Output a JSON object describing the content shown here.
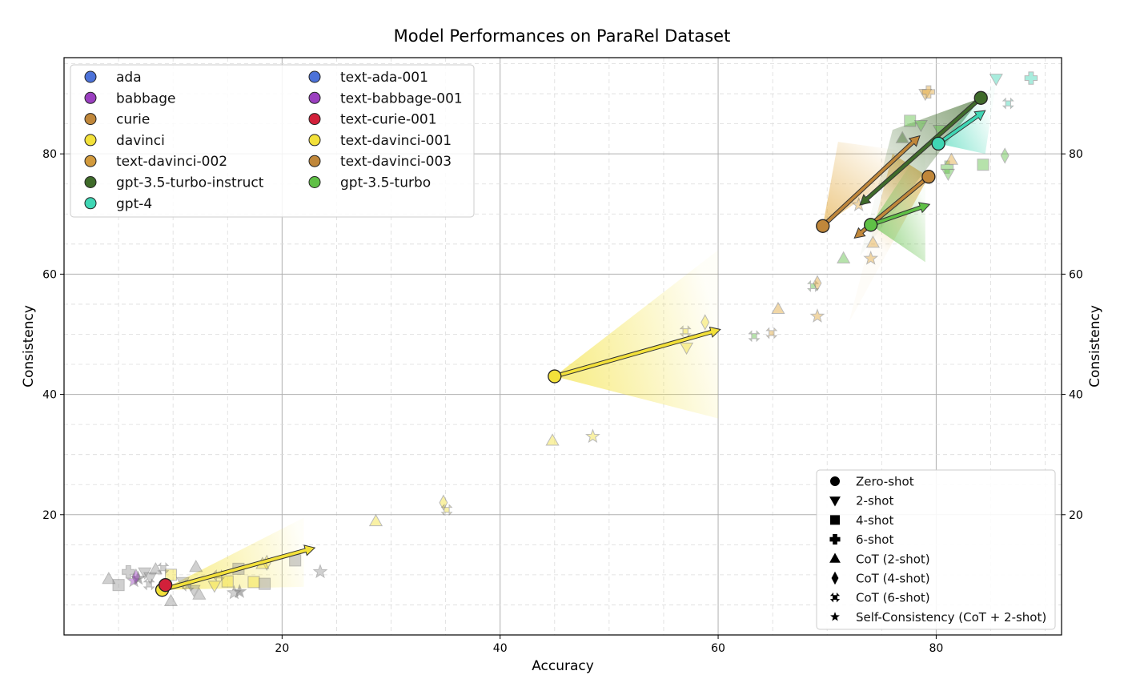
{
  "chart_data": {
    "type": "scatter",
    "title": "Model Performances on ParaRel Dataset",
    "xlabel": "Accuracy",
    "ylabel": "Consistency",
    "ylabel_right": "Consistency",
    "xlim": [
      0,
      91.5
    ],
    "ylim": [
      0,
      96
    ],
    "xticks": [
      20,
      40,
      60,
      80
    ],
    "yticks": [
      20,
      40,
      60,
      80
    ],
    "grid": true,
    "legend_models_position": "upper-left",
    "legend_methods_position": "lower-right",
    "models": [
      {
        "name": "ada",
        "color": "#4c72d9"
      },
      {
        "name": "babbage",
        "color": "#9b3fc0"
      },
      {
        "name": "curie",
        "color": "#c0873a"
      },
      {
        "name": "davinci",
        "color": "#f3e13a"
      },
      {
        "name": "text-davinci-002",
        "color": "#d29a3c"
      },
      {
        "name": "gpt-3.5-turbo-instruct",
        "color": "#3f6b2a"
      },
      {
        "name": "gpt-4",
        "color": "#3fd6b4"
      },
      {
        "name": "text-ada-001",
        "color": "#4c72d9"
      },
      {
        "name": "text-babbage-001",
        "color": "#9b3fc0"
      },
      {
        "name": "text-curie-001",
        "color": "#d2203a"
      },
      {
        "name": "text-davinci-001",
        "color": "#f3e13a"
      },
      {
        "name": "text-davinci-003",
        "color": "#c0873a"
      },
      {
        "name": "gpt-3.5-turbo",
        "color": "#5fc046"
      }
    ],
    "methods": [
      {
        "name": "Zero-shot",
        "marker": "circle"
      },
      {
        "name": "2-shot",
        "marker": "triangle-down"
      },
      {
        "name": "4-shot",
        "marker": "square"
      },
      {
        "name": "6-shot",
        "marker": "plus"
      },
      {
        "name": "CoT (2-shot)",
        "marker": "triangle-up"
      },
      {
        "name": "CoT (4-shot)",
        "marker": "diamond"
      },
      {
        "name": "CoT (6-shot)",
        "marker": "x"
      },
      {
        "name": "Self-Consistency (CoT + 2-shot)",
        "marker": "star"
      }
    ],
    "zero_shot_points": [
      {
        "model": "text-davinci-001",
        "x": 45.0,
        "y": 43.0,
        "color": "#f3e13a"
      },
      {
        "model": "davinci",
        "x": 9.0,
        "y": 7.5,
        "color": "#f3e13a"
      },
      {
        "model": "text-curie-001",
        "x": 9.3,
        "y": 8.3,
        "color": "#d2203a"
      },
      {
        "model": "text-davinci-002",
        "x": 69.6,
        "y": 68.0,
        "color": "#c0873a"
      },
      {
        "model": "text-davinci-003",
        "x": 79.3,
        "y": 76.2,
        "color": "#c0873a"
      },
      {
        "model": "gpt-3.5-turbo",
        "x": 74.0,
        "y": 68.2,
        "color": "#5fc046"
      },
      {
        "model": "gpt-4",
        "x": 80.2,
        "y": 81.7,
        "color": "#3fd6b4"
      },
      {
        "model": "gpt-3.5-turbo-instruct",
        "x": 84.1,
        "y": 89.3,
        "color": "#3f6b2a"
      }
    ],
    "arrows": [
      {
        "x0": 45.0,
        "y0": 43.0,
        "x1": 60.2,
        "y1": 50.8,
        "color": "#f3e13a"
      },
      {
        "x0": 9.0,
        "y0": 7.5,
        "x1": 23.0,
        "y1": 14.5,
        "color": "#f3e13a"
      },
      {
        "x0": 69.6,
        "y0": 68.0,
        "x1": 78.5,
        "y1": 83.0,
        "color": "#c0873a"
      },
      {
        "x0": 79.3,
        "y0": 76.2,
        "x1": 72.5,
        "y1": 66.0,
        "color": "#c0873a"
      },
      {
        "x0": 74.0,
        "y0": 68.2,
        "x1": 79.4,
        "y1": 71.6,
        "color": "#5fc046"
      },
      {
        "x0": 84.1,
        "y0": 89.3,
        "x1": 73.0,
        "y1": 71.5,
        "color": "#3f6b2a"
      },
      {
        "x0": 80.2,
        "y0": 81.7,
        "x1": 84.5,
        "y1": 87.2,
        "color": "#3fd6b4"
      }
    ],
    "fans": [
      {
        "x0": 45.0,
        "y0": 43.0,
        "x1": 60.0,
        "y1": 64.0,
        "x2": 60.0,
        "y2": 36.0,
        "color": "#f3e13a"
      },
      {
        "x0": 9.0,
        "y0": 7.5,
        "x1": 22.0,
        "y1": 19.5,
        "x2": 22.0,
        "y2": 8.0,
        "color": "#f3e13a"
      },
      {
        "x0": 69.6,
        "y0": 68.0,
        "x1": 71.0,
        "y1": 82.0,
        "x2": 79.0,
        "y2": 80.0,
        "color": "#e2a83c"
      },
      {
        "x0": 79.3,
        "y0": 76.2,
        "x1": 72.0,
        "y1": 52.0,
        "x2": 76.0,
        "y2": 80.0,
        "color": "#e2a83c"
      },
      {
        "x0": 74.0,
        "y0": 68.2,
        "x1": 79.0,
        "y1": 82.0,
        "x2": 79.0,
        "y2": 62.0,
        "color": "#5fc046"
      },
      {
        "x0": 84.1,
        "y0": 89.3,
        "x1": 73.0,
        "y1": 63.0,
        "x2": 76.0,
        "y2": 84.0,
        "color": "#3f6b2a"
      },
      {
        "x0": 80.2,
        "y0": 81.7,
        "x1": 85.5,
        "y1": 92.0,
        "x2": 84.5,
        "y2": 80.0,
        "color": "#3fd6b4"
      }
    ],
    "other_points": [
      {
        "m": "triangle-up",
        "x": 44.8,
        "y": 32.3,
        "c": "#f3e13a"
      },
      {
        "m": "star",
        "x": 48.5,
        "y": 33.0,
        "c": "#f3e13a"
      },
      {
        "m": "triangle-up",
        "x": 28.6,
        "y": 18.9,
        "c": "#f3e13a"
      },
      {
        "m": "diamond",
        "x": 34.8,
        "y": 22.0,
        "c": "#f3e13a"
      },
      {
        "m": "x",
        "x": 35.1,
        "y": 20.8,
        "c": "#f3e13a"
      },
      {
        "m": "x",
        "x": 57.0,
        "y": 50.5,
        "c": "#f3e13a"
      },
      {
        "m": "triangle-down",
        "x": 57.1,
        "y": 47.8,
        "c": "#f3e13a"
      },
      {
        "m": "diamond",
        "x": 58.8,
        "y": 52.0,
        "c": "#f3e13a"
      },
      {
        "m": "x",
        "x": 63.3,
        "y": 49.7,
        "c": "#5fc046"
      },
      {
        "m": "x",
        "x": 64.9,
        "y": 50.2,
        "c": "#e2a83c"
      },
      {
        "m": "triangle-up",
        "x": 65.5,
        "y": 54.2,
        "c": "#e2a83c"
      },
      {
        "m": "star",
        "x": 69.1,
        "y": 53.0,
        "c": "#e2a83c"
      },
      {
        "m": "x",
        "x": 68.7,
        "y": 58.0,
        "c": "#5fc046"
      },
      {
        "m": "diamond",
        "x": 69.1,
        "y": 58.5,
        "c": "#e2a83c"
      },
      {
        "m": "triangle-up",
        "x": 71.5,
        "y": 62.6,
        "c": "#5fc046"
      },
      {
        "m": "star",
        "x": 74.0,
        "y": 62.6,
        "c": "#e2a83c"
      },
      {
        "m": "triangle-up",
        "x": 74.2,
        "y": 65.2,
        "c": "#e2a83c"
      },
      {
        "m": "star",
        "x": 72.9,
        "y": 71.5,
        "c": "#e2a83c"
      },
      {
        "m": "triangle-up",
        "x": 76.9,
        "y": 82.6,
        "c": "#3f6b2a"
      },
      {
        "m": "square",
        "x": 77.6,
        "y": 85.5,
        "c": "#5fc046"
      },
      {
        "m": "triangle-down",
        "x": 78.6,
        "y": 84.8,
        "c": "#5fc046"
      },
      {
        "m": "triangle-down",
        "x": 79.0,
        "y": 90.0,
        "c": "#e2a83c"
      },
      {
        "m": "plus",
        "x": 79.3,
        "y": 90.3,
        "c": "#e2a83c"
      },
      {
        "m": "triangle-down",
        "x": 80.3,
        "y": 84.0,
        "c": "#5fc046"
      },
      {
        "m": "plus",
        "x": 81.0,
        "y": 77.8,
        "c": "#5fc046"
      },
      {
        "m": "triangle-down",
        "x": 81.1,
        "y": 76.7,
        "c": "#5fc046"
      },
      {
        "m": "triangle-up",
        "x": 81.4,
        "y": 79.0,
        "c": "#e2a83c"
      },
      {
        "m": "triangle-down",
        "x": 85.5,
        "y": 92.5,
        "c": "#3fd6b4"
      },
      {
        "m": "plus",
        "x": 88.7,
        "y": 92.6,
        "c": "#3fd6b4"
      },
      {
        "m": "x",
        "x": 86.6,
        "y": 88.4,
        "c": "#3fd6b4"
      },
      {
        "m": "square",
        "x": 84.3,
        "y": 78.2,
        "c": "#5fc046"
      },
      {
        "m": "diamond",
        "x": 86.3,
        "y": 79.7,
        "c": "#5fc046"
      },
      {
        "m": "star",
        "x": 23.5,
        "y": 10.5,
        "c": "#999999"
      },
      {
        "m": "square",
        "x": 21.2,
        "y": 12.4,
        "c": "#999999"
      },
      {
        "m": "diamond",
        "x": 18.6,
        "y": 12.0,
        "c": "#f3e13a"
      },
      {
        "m": "triangle-up",
        "x": 18.2,
        "y": 11.8,
        "c": "#f3e13a"
      },
      {
        "m": "square",
        "x": 18.4,
        "y": 8.5,
        "c": "#999999"
      },
      {
        "m": "square",
        "x": 17.4,
        "y": 8.8,
        "c": "#f3e13a"
      },
      {
        "m": "square",
        "x": 16.0,
        "y": 11.0,
        "c": "#999999"
      },
      {
        "m": "star",
        "x": 16.1,
        "y": 7.2,
        "c": "#555555"
      },
      {
        "m": "star",
        "x": 15.6,
        "y": 7.0,
        "c": "#999999"
      },
      {
        "m": "square",
        "x": 15.0,
        "y": 8.9,
        "c": "#f3e13a"
      },
      {
        "m": "x",
        "x": 14.2,
        "y": 9.9,
        "c": "#f3e13a"
      },
      {
        "m": "triangle-down",
        "x": 13.8,
        "y": 8.2,
        "c": "#f3e13a"
      },
      {
        "m": "triangle-up",
        "x": 12.1,
        "y": 11.3,
        "c": "#999999"
      },
      {
        "m": "triangle-up",
        "x": 12.4,
        "y": 6.7,
        "c": "#999999"
      },
      {
        "m": "triangle-down",
        "x": 11.9,
        "y": 7.5,
        "c": "#999999"
      },
      {
        "m": "x",
        "x": 11.4,
        "y": 8.2,
        "c": "#999999"
      },
      {
        "m": "triangle-down",
        "x": 10.9,
        "y": 8.8,
        "c": "#999999"
      },
      {
        "m": "square",
        "x": 9.8,
        "y": 10.0,
        "c": "#f3e13a"
      },
      {
        "m": "x",
        "x": 9.1,
        "y": 11.1,
        "c": "#999999"
      },
      {
        "m": "triangle-up",
        "x": 9.8,
        "y": 5.6,
        "c": "#999999"
      },
      {
        "m": "triangle-down",
        "x": 7.4,
        "y": 10.4,
        "c": "#999999"
      },
      {
        "m": "plus",
        "x": 5.9,
        "y": 10.5,
        "c": "#999999"
      },
      {
        "m": "square",
        "x": 5.0,
        "y": 8.3,
        "c": "#999999"
      },
      {
        "m": "triangle-up",
        "x": 4.1,
        "y": 9.3,
        "c": "#999999"
      },
      {
        "m": "star",
        "x": 6.4,
        "y": 9.0,
        "c": "#9b3fc0"
      },
      {
        "m": "star",
        "x": 6.8,
        "y": 9.4,
        "c": "#555555"
      },
      {
        "m": "diamond",
        "x": 6.6,
        "y": 9.7,
        "c": "#9b3fc0"
      },
      {
        "m": "triangle-down",
        "x": 7.9,
        "y": 9.6,
        "c": "#999999"
      },
      {
        "m": "x",
        "x": 7.8,
        "y": 8.4,
        "c": "#999999"
      },
      {
        "m": "triangle-up",
        "x": 8.4,
        "y": 10.9,
        "c": "#999999"
      }
    ]
  }
}
